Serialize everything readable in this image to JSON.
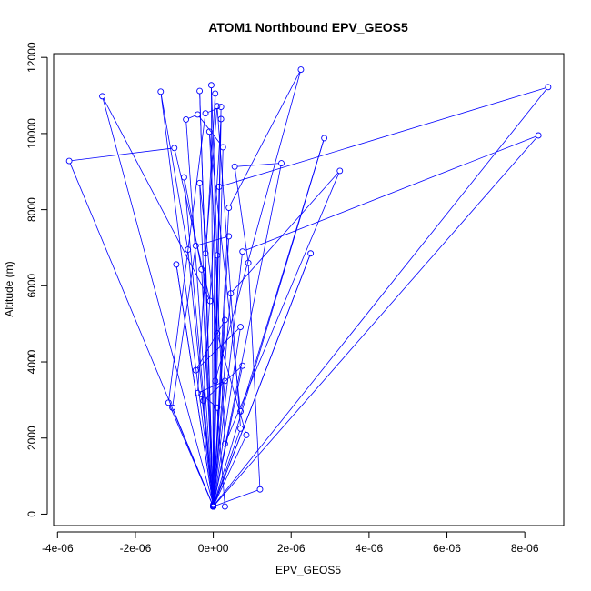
{
  "chart_data": {
    "type": "scatter",
    "title": "ATOM1 Northbound EPV_GEOS5",
    "xlabel": "EPV_GEOS5",
    "ylabel": "Altitude (m)",
    "xlim": [
      -4.1e-06,
      9e-06
    ],
    "ylim": [
      -300,
      12100
    ],
    "x_ticks": [
      -4e-06,
      -2e-06,
      0,
      2e-06,
      4e-06,
      6e-06,
      8e-06
    ],
    "x_tick_labels": [
      "-4e-06",
      "-2e-06",
      "0e+00",
      "2e-06",
      "4e-06",
      "6e-06",
      "8e-06"
    ],
    "y_ticks": [
      0,
      2000,
      4000,
      6000,
      8000,
      10000,
      12000
    ],
    "y_tick_labels": [
      "0",
      "2000",
      "4000",
      "6000",
      "8000",
      "10000",
      "12000"
    ],
    "series_color": "#0000ff",
    "connected": true,
    "points": [
      {
        "x": 0.0,
        "y": 200
      },
      {
        "x": -3.7e-06,
        "y": 9280
      },
      {
        "x": -1e-06,
        "y": 9620
      },
      {
        "x": -8e-08,
        "y": 5600
      },
      {
        "x": -2.85e-06,
        "y": 10980
      },
      {
        "x": 0.0,
        "y": 250
      },
      {
        "x": -1.35e-06,
        "y": 11100
      },
      {
        "x": -6.5e-07,
        "y": 6950
      },
      {
        "x": 0.0,
        "y": 200
      },
      {
        "x": -1.15e-06,
        "y": 2930
      },
      {
        "x": -2e-07,
        "y": 10530
      },
      {
        "x": 2e-07,
        "y": 10700
      },
      {
        "x": 5e-08,
        "y": 3500
      },
      {
        "x": 2.25e-06,
        "y": 11680
      },
      {
        "x": 4e-07,
        "y": 8050
      },
      {
        "x": 0.0,
        "y": 210
      },
      {
        "x": 8.6e-06,
        "y": 11220
      },
      {
        "x": 1.5e-07,
        "y": 8600
      },
      {
        "x": 0.0,
        "y": 200
      },
      {
        "x": 8.35e-06,
        "y": 9950
      },
      {
        "x": 7.5e-07,
        "y": 6900
      },
      {
        "x": 0.0,
        "y": 210
      },
      {
        "x": 2.85e-06,
        "y": 9880
      },
      {
        "x": 7e-07,
        "y": 2700
      },
      {
        "x": -1e-07,
        "y": 10050
      },
      {
        "x": 3e-07,
        "y": 1850
      },
      {
        "x": 3.25e-06,
        "y": 9020
      },
      {
        "x": 4.5e-07,
        "y": 5800
      },
      {
        "x": 0.0,
        "y": 200
      },
      {
        "x": 2.5e-06,
        "y": 6850
      },
      {
        "x": 0.0,
        "y": 200
      },
      {
        "x": 1.2e-06,
        "y": 650
      },
      {
        "x": 9e-07,
        "y": 6600
      },
      {
        "x": 5.5e-07,
        "y": 9130
      },
      {
        "x": 1.75e-06,
        "y": 9220
      },
      {
        "x": 0.0,
        "y": 220
      },
      {
        "x": -3.5e-07,
        "y": 11120
      },
      {
        "x": 0.0,
        "y": 200
      },
      {
        "x": -7e-07,
        "y": 10370
      },
      {
        "x": -4e-07,
        "y": 10500
      },
      {
        "x": 2.5e-07,
        "y": 9640
      },
      {
        "x": 0.0,
        "y": 200
      },
      {
        "x": -9.5e-07,
        "y": 6560
      },
      {
        "x": 0.0,
        "y": 200
      },
      {
        "x": -7.5e-07,
        "y": 8850
      },
      {
        "x": -3e-07,
        "y": 6430
      },
      {
        "x": 0.0,
        "y": 230
      },
      {
        "x": -5e-08,
        "y": 11270
      },
      {
        "x": 1e-07,
        "y": 6800
      },
      {
        "x": 0.0,
        "y": 200
      },
      {
        "x": 3e-07,
        "y": 5100
      },
      {
        "x": -4.5e-07,
        "y": 3780
      },
      {
        "x": 7e-07,
        "y": 4920
      },
      {
        "x": 0.0,
        "y": 200
      },
      {
        "x": 2e-07,
        "y": 10380
      },
      {
        "x": -2.5e-07,
        "y": 2980
      },
      {
        "x": 7.5e-07,
        "y": 3900
      },
      {
        "x": 0.0,
        "y": 200
      },
      {
        "x": 8.5e-07,
        "y": 2080
      },
      {
        "x": 1e-07,
        "y": 4750
      },
      {
        "x": -3.5e-07,
        "y": 8700
      },
      {
        "x": 0.0,
        "y": 200
      },
      {
        "x": -1.05e-06,
        "y": 2800
      },
      {
        "x": -4.5e-07,
        "y": 7050
      },
      {
        "x": 4e-07,
        "y": 7300
      },
      {
        "x": 0.0,
        "y": 200
      },
      {
        "x": 5e-08,
        "y": 11050
      },
      {
        "x": -4e-07,
        "y": 3180
      },
      {
        "x": 3e-07,
        "y": 3500
      },
      {
        "x": 0.0,
        "y": 200
      },
      {
        "x": 7e-07,
        "y": 2250
      },
      {
        "x": 1e-07,
        "y": 10720
      },
      {
        "x": -2e-07,
        "y": 6850
      },
      {
        "x": 0.0,
        "y": 200
      },
      {
        "x": -3e-07,
        "y": 3150
      },
      {
        "x": 1e-07,
        "y": 2800
      },
      {
        "x": 3e-07,
        "y": 200
      }
    ]
  }
}
